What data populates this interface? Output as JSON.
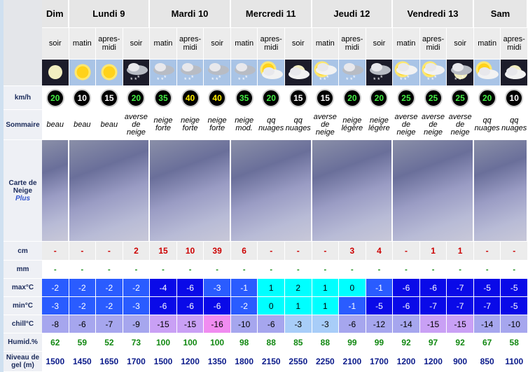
{
  "days": [
    {
      "name": "Dim",
      "periods": [
        "soir"
      ]
    },
    {
      "name": "Lundi 9",
      "periods": [
        "matin",
        "apres-midi",
        "soir"
      ]
    },
    {
      "name": "Mardi 10",
      "periods": [
        "matin",
        "apres-midi",
        "soir"
      ]
    },
    {
      "name": "Mercredi 11",
      "periods": [
        "matin",
        "apres-midi",
        "soir"
      ]
    },
    {
      "name": "Jeudi 12",
      "periods": [
        "matin",
        "apres-midi",
        "soir"
      ]
    },
    {
      "name": "Vendredi 13",
      "periods": [
        "matin",
        "apres-midi",
        "soir"
      ]
    },
    {
      "name": "Sam",
      "periods": [
        "matin",
        "apres-midi"
      ]
    }
  ],
  "row_labels": {
    "wind": "km/h",
    "summary": "Sommaire",
    "map": "Carte de Neige",
    "map_link": "Plus",
    "snow_cm": "cm",
    "rain_mm": "mm",
    "max": "max°C",
    "min": "min°C",
    "chill": "chill°C",
    "humidity": "Humid.%",
    "freezing_level": "Niveau de gel (m)"
  },
  "rows": {
    "wind": [
      20,
      10,
      15,
      20,
      35,
      40,
      40,
      35,
      20,
      15,
      15,
      20,
      20,
      25,
      25,
      25,
      20,
      10
    ],
    "summary": [
      "beau",
      "beau",
      "beau",
      "averse de neige",
      "neige forte",
      "neige forte",
      "neige forte",
      "neige mod.",
      "qq nuages",
      "qq nuages",
      "averse de neige",
      "neige légère",
      "neige légère",
      "averse de neige",
      "averse de neige",
      "averse de neige",
      "qq nuages",
      "qq nuages"
    ],
    "snow_cm": [
      "-",
      "-",
      "-",
      2,
      15,
      10,
      39,
      6,
      "-",
      "-",
      "-",
      3,
      4,
      "-",
      1,
      1,
      "-",
      "-"
    ],
    "rain_mm": [
      "-",
      "-",
      "-",
      "-",
      "-",
      "-",
      "-",
      "-",
      "-",
      "-",
      "-",
      "-",
      "-",
      "-",
      "-",
      "-",
      "-",
      "-"
    ],
    "max": [
      -2,
      -2,
      -2,
      -2,
      -4,
      -6,
      -3,
      -1,
      1,
      2,
      1,
      0,
      -1,
      -6,
      -6,
      -7,
      -5,
      -5
    ],
    "min": [
      -3,
      -2,
      -2,
      -3,
      -6,
      -6,
      -6,
      -2,
      0,
      1,
      1,
      -1,
      -5,
      -6,
      -7,
      -7,
      -7,
      -5
    ],
    "chill": [
      -8,
      -6,
      -7,
      -9,
      -15,
      -15,
      -16,
      -10,
      -6,
      -3,
      -3,
      -6,
      -12,
      -14,
      -15,
      -15,
      -14,
      -10
    ],
    "humidity": [
      62,
      59,
      52,
      73,
      100,
      100,
      100,
      98,
      88,
      85,
      88,
      99,
      99,
      92,
      97,
      92,
      67,
      58
    ],
    "freezing_level": [
      1500,
      1450,
      1650,
      1700,
      1500,
      1200,
      1350,
      1800,
      2150,
      2550,
      2250,
      2100,
      1700,
      1200,
      1200,
      900,
      850,
      1100
    ]
  }
}
